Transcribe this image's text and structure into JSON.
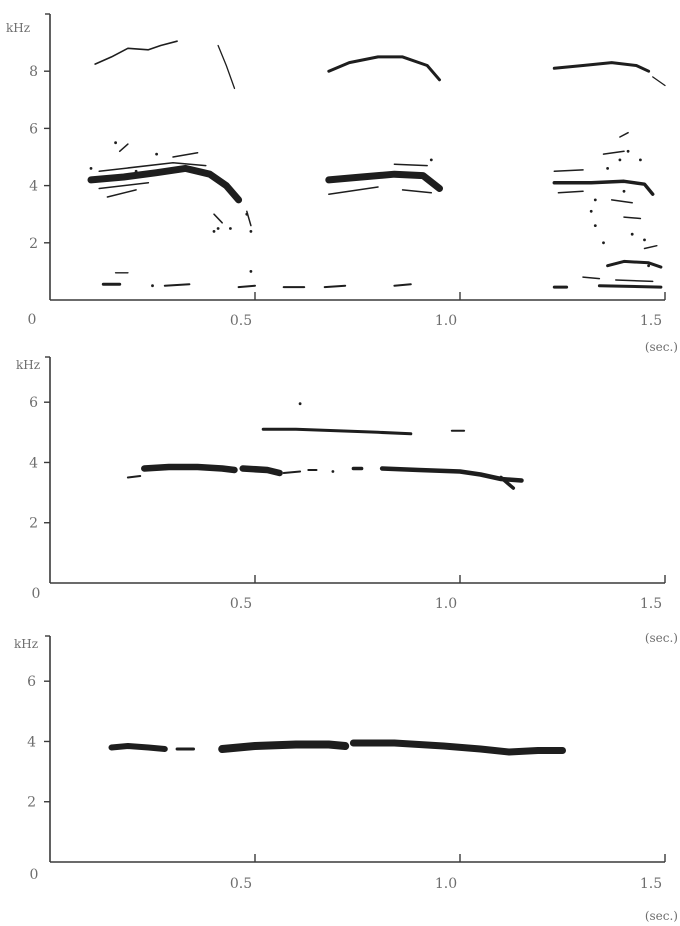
{
  "chart_data": [
    {
      "type": "line",
      "ylabel": "kHz",
      "xunit": "(sec.)",
      "origin_label": "0",
      "xlim": [
        0,
        1.5
      ],
      "ylim": [
        0,
        10
      ],
      "xticks": [
        {
          "value": 0.5,
          "label": "0.5"
        },
        {
          "value": 1.0,
          "label": "1.0"
        },
        {
          "value": 1.5,
          "label": "1.5"
        }
      ],
      "yticks": [
        {
          "value": 2,
          "label": "2"
        },
        {
          "value": 4,
          "label": "4"
        },
        {
          "value": 6,
          "label": "6"
        },
        {
          "value": 8,
          "label": "8"
        }
      ],
      "color": "#1e1e1e",
      "series": [
        {
          "w": 1.6,
          "points": [
            [
              0.11,
              8.25
            ],
            [
              0.15,
              8.5
            ],
            [
              0.19,
              8.8
            ],
            [
              0.24,
              8.75
            ],
            [
              0.27,
              8.9
            ],
            [
              0.31,
              9.05
            ]
          ]
        },
        {
          "w": 1.3,
          "points": [
            [
              0.41,
              8.9
            ],
            [
              0.43,
              8.2
            ],
            [
              0.45,
              7.4
            ]
          ]
        },
        {
          "w": 3.0,
          "points": [
            [
              0.68,
              8.0
            ],
            [
              0.73,
              8.3
            ],
            [
              0.8,
              8.5
            ],
            [
              0.86,
              8.5
            ],
            [
              0.92,
              8.2
            ],
            [
              0.95,
              7.7
            ]
          ]
        },
        {
          "w": 3.0,
          "points": [
            [
              1.23,
              8.1
            ],
            [
              1.3,
              8.2
            ],
            [
              1.37,
              8.3
            ],
            [
              1.43,
              8.2
            ],
            [
              1.46,
              8.0
            ]
          ]
        },
        {
          "w": 1.3,
          "points": [
            [
              1.47,
              7.8
            ],
            [
              1.5,
              7.5
            ]
          ]
        },
        {
          "w": 7.0,
          "points": [
            [
              0.1,
              4.2
            ],
            [
              0.18,
              4.3
            ],
            [
              0.26,
              4.45
            ],
            [
              0.33,
              4.6
            ],
            [
              0.39,
              4.4
            ],
            [
              0.43,
              4.0
            ],
            [
              0.46,
              3.5
            ]
          ]
        },
        {
          "w": 1.5,
          "points": [
            [
              0.12,
              4.5
            ],
            [
              0.3,
              4.8
            ],
            [
              0.38,
              4.7
            ]
          ]
        },
        {
          "w": 1.5,
          "points": [
            [
              0.12,
              3.9
            ],
            [
              0.24,
              4.1
            ]
          ]
        },
        {
          "w": 1.5,
          "points": [
            [
              0.14,
              3.6
            ],
            [
              0.21,
              3.85
            ]
          ]
        },
        {
          "w": 1.5,
          "points": [
            [
              0.17,
              5.2
            ],
            [
              0.19,
              5.45
            ]
          ]
        },
        {
          "w": 1.5,
          "points": [
            [
              0.3,
              5.0
            ],
            [
              0.36,
              5.15
            ]
          ]
        },
        {
          "w": 1.5,
          "points": [
            [
              0.4,
              3.0
            ],
            [
              0.42,
              2.7
            ]
          ]
        },
        {
          "w": 1.5,
          "points": [
            [
              0.48,
              3.1
            ],
            [
              0.49,
              2.6
            ]
          ]
        },
        {
          "w": 7.0,
          "points": [
            [
              0.68,
              4.2
            ],
            [
              0.76,
              4.3
            ],
            [
              0.84,
              4.4
            ],
            [
              0.91,
              4.35
            ],
            [
              0.95,
              3.9
            ]
          ]
        },
        {
          "w": 1.5,
          "points": [
            [
              0.68,
              3.7
            ],
            [
              0.8,
              3.95
            ]
          ]
        },
        {
          "w": 1.5,
          "points": [
            [
              0.86,
              3.85
            ],
            [
              0.93,
              3.75
            ]
          ]
        },
        {
          "w": 1.5,
          "points": [
            [
              0.84,
              4.75
            ],
            [
              0.92,
              4.7
            ]
          ]
        },
        {
          "w": 3.5,
          "points": [
            [
              1.23,
              4.1
            ],
            [
              1.32,
              4.1
            ],
            [
              1.4,
              4.15
            ],
            [
              1.45,
              4.05
            ],
            [
              1.47,
              3.7
            ]
          ]
        },
        {
          "w": 1.5,
          "points": [
            [
              1.23,
              4.5
            ],
            [
              1.3,
              4.55
            ]
          ]
        },
        {
          "w": 1.5,
          "points": [
            [
              1.24,
              3.75
            ],
            [
              1.3,
              3.8
            ]
          ]
        },
        {
          "w": 1.5,
          "points": [
            [
              1.35,
              5.1
            ],
            [
              1.4,
              5.2
            ]
          ]
        },
        {
          "w": 1.5,
          "points": [
            [
              1.39,
              5.7
            ],
            [
              1.41,
              5.85
            ]
          ]
        },
        {
          "w": 1.5,
          "points": [
            [
              1.37,
              3.5
            ],
            [
              1.42,
              3.4
            ]
          ]
        },
        {
          "w": 1.5,
          "points": [
            [
              1.4,
              2.9
            ],
            [
              1.44,
              2.85
            ]
          ]
        },
        {
          "w": 3.0,
          "points": [
            [
              1.36,
              1.2
            ],
            [
              1.4,
              1.35
            ],
            [
              1.46,
              1.3
            ],
            [
              1.49,
              1.15
            ]
          ]
        },
        {
          "w": 1.5,
          "points": [
            [
              1.45,
              1.8
            ],
            [
              1.48,
              1.9
            ]
          ]
        },
        {
          "w": 1.5,
          "points": [
            [
              1.38,
              0.7
            ],
            [
              1.47,
              0.65
            ]
          ]
        },
        {
          "w": 3.0,
          "points": [
            [
              1.23,
              0.45
            ],
            [
              1.26,
              0.45
            ]
          ]
        },
        {
          "w": 3.0,
          "points": [
            [
              1.34,
              0.5
            ],
            [
              1.49,
              0.45
            ]
          ]
        },
        {
          "w": 1.5,
          "points": [
            [
              1.3,
              0.8
            ],
            [
              1.34,
              0.75
            ]
          ]
        },
        {
          "w": 3.0,
          "points": [
            [
              0.13,
              0.55
            ],
            [
              0.17,
              0.55
            ]
          ]
        },
        {
          "w": 1.4,
          "points": [
            [
              0.16,
              0.95
            ],
            [
              0.19,
              0.95
            ]
          ]
        },
        {
          "w": 2.0,
          "points": [
            [
              0.28,
              0.5
            ],
            [
              0.34,
              0.55
            ]
          ]
        },
        {
          "w": 2.0,
          "points": [
            [
              0.46,
              0.45
            ],
            [
              0.5,
              0.5
            ]
          ]
        },
        {
          "w": 2.0,
          "points": [
            [
              0.57,
              0.45
            ],
            [
              0.62,
              0.45
            ]
          ]
        },
        {
          "w": 2.0,
          "points": [
            [
              0.67,
              0.45
            ],
            [
              0.72,
              0.5
            ]
          ]
        },
        {
          "w": 2.0,
          "points": [
            [
              0.84,
              0.5
            ],
            [
              0.88,
              0.55
            ]
          ]
        }
      ],
      "dots": [
        [
          0.1,
          4.6
        ],
        [
          0.16,
          5.5
        ],
        [
          0.21,
          4.5
        ],
        [
          0.25,
          0.5
        ],
        [
          0.26,
          5.1
        ],
        [
          0.4,
          2.4
        ],
        [
          0.41,
          2.5
        ],
        [
          0.44,
          2.5
        ],
        [
          0.49,
          2.4
        ],
        [
          0.48,
          3.0
        ],
        [
          0.49,
          1.0
        ],
        [
          0.93,
          4.9
        ],
        [
          1.32,
          3.1
        ],
        [
          1.33,
          2.6
        ],
        [
          1.36,
          4.6
        ],
        [
          1.39,
          4.9
        ],
        [
          1.42,
          2.3
        ],
        [
          1.45,
          2.1
        ],
        [
          1.46,
          1.2
        ],
        [
          1.4,
          3.8
        ],
        [
          1.35,
          2.0
        ],
        [
          1.41,
          5.2
        ],
        [
          1.44,
          4.9
        ],
        [
          1.33,
          3.5
        ]
      ]
    },
    {
      "type": "line",
      "ylabel": "kHz",
      "xunit": "(sec.)",
      "origin_label": "0",
      "xlim": [
        0,
        1.5
      ],
      "ylim": [
        0,
        7.5
      ],
      "xticks": [
        {
          "value": 0.5,
          "label": "0.5"
        },
        {
          "value": 1.0,
          "label": "1.0"
        },
        {
          "value": 1.5,
          "label": "1.5"
        }
      ],
      "yticks": [
        {
          "value": 2,
          "label": "2"
        },
        {
          "value": 4,
          "label": "4"
        },
        {
          "value": 6,
          "label": "6"
        }
      ],
      "color": "#1e1e1e",
      "series": [
        {
          "w": 2.0,
          "points": [
            [
              0.19,
              3.5
            ],
            [
              0.22,
              3.55
            ]
          ]
        },
        {
          "w": 6.5,
          "points": [
            [
              0.23,
              3.8
            ],
            [
              0.29,
              3.85
            ],
            [
              0.36,
              3.85
            ],
            [
              0.42,
              3.8
            ],
            [
              0.45,
              3.75
            ]
          ]
        },
        {
          "w": 6.5,
          "points": [
            [
              0.47,
              3.8
            ],
            [
              0.53,
              3.75
            ],
            [
              0.56,
              3.65
            ]
          ]
        },
        {
          "w": 2.0,
          "points": [
            [
              0.57,
              3.65
            ],
            [
              0.61,
              3.7
            ]
          ]
        },
        {
          "w": 2.0,
          "points": [
            [
              0.63,
              3.75
            ],
            [
              0.65,
              3.75
            ]
          ]
        },
        {
          "w": 3.5,
          "points": [
            [
              0.74,
              3.8
            ],
            [
              0.76,
              3.8
            ]
          ]
        },
        {
          "w": 3.0,
          "points": [
            [
              0.52,
              5.1
            ],
            [
              0.6,
              5.1
            ],
            [
              0.7,
              5.05
            ],
            [
              0.8,
              5.0
            ],
            [
              0.88,
              4.95
            ]
          ]
        },
        {
          "w": 2.0,
          "points": [
            [
              0.98,
              5.05
            ],
            [
              1.01,
              5.05
            ]
          ]
        },
        {
          "w": 4.5,
          "points": [
            [
              0.81,
              3.8
            ],
            [
              0.9,
              3.75
            ],
            [
              1.0,
              3.7
            ],
            [
              1.05,
              3.6
            ],
            [
              1.1,
              3.45
            ],
            [
              1.15,
              3.4
            ]
          ]
        },
        {
          "w": 3.5,
          "points": [
            [
              1.1,
              3.5
            ],
            [
              1.13,
              3.15
            ]
          ]
        }
      ],
      "dots": [
        [
          0.61,
          5.95
        ],
        [
          0.69,
          3.7
        ]
      ]
    },
    {
      "type": "line",
      "ylabel": "kHz",
      "xunit": "(sec.)",
      "origin_label": "0",
      "xlim": [
        0,
        1.5
      ],
      "ylim": [
        0,
        7.5
      ],
      "xticks": [
        {
          "value": 0.5,
          "label": "0.5"
        },
        {
          "value": 1.0,
          "label": "1.0"
        },
        {
          "value": 1.5,
          "label": "1.5"
        }
      ],
      "yticks": [
        {
          "value": 2,
          "label": "2"
        },
        {
          "value": 4,
          "label": "4"
        },
        {
          "value": 6,
          "label": "6"
        }
      ],
      "color": "#1e1e1e",
      "series": [
        {
          "w": 6.0,
          "points": [
            [
              0.15,
              3.8
            ],
            [
              0.19,
              3.85
            ],
            [
              0.24,
              3.8
            ],
            [
              0.28,
              3.75
            ]
          ]
        },
        {
          "w": 3.0,
          "points": [
            [
              0.31,
              3.75
            ],
            [
              0.35,
              3.75
            ]
          ]
        },
        {
          "w": 8.0,
          "points": [
            [
              0.42,
              3.75
            ],
            [
              0.5,
              3.85
            ],
            [
              0.6,
              3.9
            ],
            [
              0.68,
              3.9
            ],
            [
              0.72,
              3.85
            ]
          ]
        },
        {
          "w": 7.0,
          "points": [
            [
              0.74,
              3.95
            ],
            [
              0.84,
              3.95
            ],
            [
              0.96,
              3.85
            ],
            [
              1.05,
              3.75
            ],
            [
              1.12,
              3.65
            ],
            [
              1.19,
              3.7
            ],
            [
              1.25,
              3.7
            ]
          ]
        }
      ],
      "dots": []
    }
  ]
}
